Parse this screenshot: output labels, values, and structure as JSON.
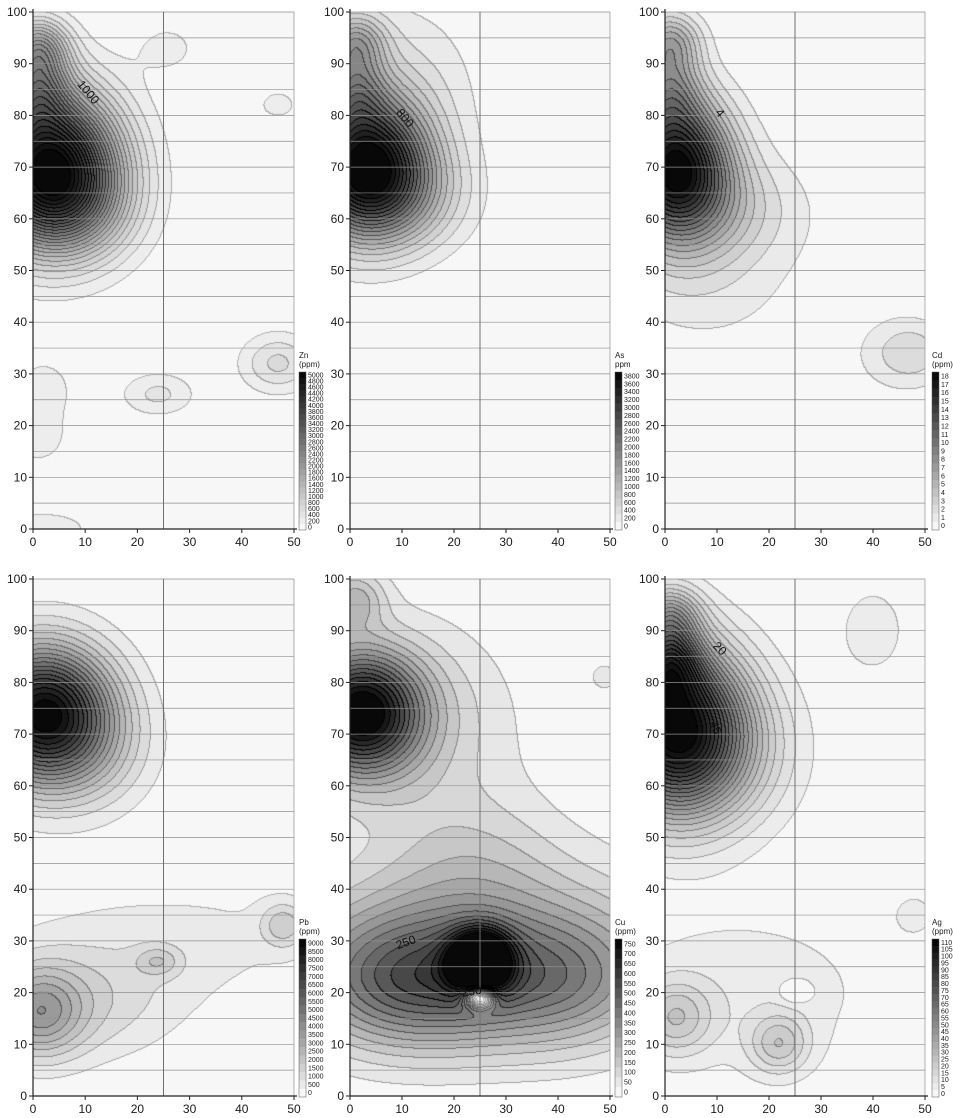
{
  "chart_data": [
    {
      "type": "contour",
      "element": "Zn",
      "unit": "(ppm)",
      "xlim": [
        0,
        50
      ],
      "ylim": [
        0,
        100
      ],
      "x_ticks": [
        0,
        10,
        20,
        30,
        40,
        50
      ],
      "y_ticks": [
        0,
        10,
        20,
        30,
        40,
        50,
        60,
        70,
        80,
        90,
        100
      ],
      "gridlines_y_step": 5,
      "vertical_line_x": 25,
      "colorbar_levels": [
        "5000",
        "4800",
        "4600",
        "4400",
        "4200",
        "4000",
        "3800",
        "3600",
        "3400",
        "3200",
        "3000",
        "2800",
        "2600",
        "2400",
        "2200",
        "2000",
        "1800",
        "1600",
        "1400",
        "1200",
        "1000",
        "800",
        "600",
        "400",
        "200",
        "0"
      ],
      "contour_labels": [
        {
          "text": "1000",
          "x": 10,
          "y": 84,
          "angle": 50
        }
      ],
      "peaks": [
        {
          "x": 3,
          "y": 70,
          "value": 5000,
          "sx": 9,
          "sy": 10
        },
        {
          "x": 1,
          "y": 93,
          "value": 1600,
          "sx": 4,
          "sy": 4
        },
        {
          "x": 1,
          "y": 85,
          "value": 1400,
          "sx": 4,
          "sy": 5
        },
        {
          "x": 8,
          "y": 62,
          "value": 900,
          "sx": 8,
          "sy": 7
        },
        {
          "x": 26,
          "y": 93,
          "value": 250,
          "sx": 5,
          "sy": 4
        },
        {
          "x": 47,
          "y": 82,
          "value": 250,
          "sx": 4,
          "sy": 3
        },
        {
          "x": 47,
          "y": 32,
          "value": 650,
          "sx": 5,
          "sy": 4
        },
        {
          "x": 24,
          "y": 26,
          "value": 450,
          "sx": 5,
          "sy": 3
        },
        {
          "x": 2,
          "y": 27,
          "value": 350,
          "sx": 4,
          "sy": 4
        },
        {
          "x": 1,
          "y": 18,
          "value": 350,
          "sx": 4,
          "sy": 4
        },
        {
          "x": 2,
          "y": 0,
          "value": 300,
          "sx": 8,
          "sy": 3
        }
      ]
    },
    {
      "type": "contour",
      "element": "As",
      "unit": "ppm",
      "xlim": [
        0,
        50
      ],
      "ylim": [
        0,
        100
      ],
      "x_ticks": [
        0,
        10,
        20,
        30,
        40,
        50
      ],
      "y_ticks": [
        0,
        10,
        20,
        30,
        40,
        50,
        60,
        70,
        80,
        90,
        100
      ],
      "gridlines_y_step": 5,
      "vertical_line_x": 25,
      "colorbar_levels": [
        "3800",
        "3600",
        "3400",
        "3200",
        "3000",
        "2800",
        "2600",
        "2400",
        "2200",
        "2000",
        "1800",
        "1600",
        "1400",
        "1200",
        "1000",
        "800",
        "600",
        "400",
        "200",
        "0"
      ],
      "contour_labels": [
        {
          "text": "800",
          "x": 10,
          "y": 79,
          "angle": 50
        }
      ],
      "peaks": [
        {
          "x": 3,
          "y": 70,
          "value": 3800,
          "sx": 8,
          "sy": 9
        },
        {
          "x": 1,
          "y": 94,
          "value": 1200,
          "sx": 4,
          "sy": 4
        },
        {
          "x": 1,
          "y": 85,
          "value": 1000,
          "sx": 4,
          "sy": 5
        },
        {
          "x": 10,
          "y": 64,
          "value": 700,
          "sx": 9,
          "sy": 7
        },
        {
          "x": 10,
          "y": 85,
          "value": 400,
          "sx": 10,
          "sy": 12
        },
        {
          "x": 3,
          "y": 42,
          "value": -150,
          "sx": 1.5,
          "sy": 1.5
        }
      ]
    },
    {
      "type": "contour",
      "element": "Cd",
      "unit": "(ppm)",
      "xlim": [
        0,
        50
      ],
      "ylim": [
        0,
        100
      ],
      "x_ticks": [
        0,
        10,
        20,
        30,
        40,
        50
      ],
      "y_ticks": [
        0,
        10,
        20,
        30,
        40,
        50,
        60,
        70,
        80,
        90,
        100
      ],
      "gridlines_y_step": 5,
      "vertical_line_x": 25,
      "colorbar_levels": [
        "18",
        "17",
        "16",
        "15",
        "14",
        "13",
        "12",
        "11",
        "10",
        "9",
        "8",
        "7",
        "6",
        "5",
        "4",
        "3",
        "2",
        "1",
        "0"
      ],
      "contour_labels": [
        {
          "text": "4",
          "x": 10,
          "y": 80,
          "angle": 50
        }
      ],
      "peaks": [
        {
          "x": 2,
          "y": 70,
          "value": 18,
          "sx": 7,
          "sy": 9
        },
        {
          "x": 1,
          "y": 94,
          "value": 6,
          "sx": 4,
          "sy": 4
        },
        {
          "x": 1,
          "y": 85,
          "value": 5,
          "sx": 4,
          "sy": 5
        },
        {
          "x": 10,
          "y": 62,
          "value": 3,
          "sx": 10,
          "sy": 7
        },
        {
          "x": 6,
          "y": 50,
          "value": 1.3,
          "sx": 10,
          "sy": 8
        },
        {
          "x": 47,
          "y": 34,
          "value": 2.5,
          "sx": 5,
          "sy": 4
        },
        {
          "x": 25,
          "y": 30,
          "value": 0.6,
          "sx": 30,
          "sy": 30
        }
      ]
    },
    {
      "type": "contour",
      "element": "Pb",
      "unit": "(ppm)",
      "xlim": [
        0,
        50
      ],
      "ylim": [
        0,
        100
      ],
      "x_ticks": [
        0,
        10,
        20,
        30,
        40,
        50
      ],
      "y_ticks": [
        0,
        10,
        20,
        30,
        40,
        50,
        60,
        70,
        80,
        90,
        100
      ],
      "gridlines_y_step": 5,
      "vertical_line_x": 25,
      "colorbar_levels": [
        "9000",
        "8500",
        "8000",
        "7500",
        "7000",
        "6500",
        "6000",
        "5500",
        "5000",
        "4500",
        "4000",
        "3500",
        "3000",
        "2500",
        "2000",
        "1500",
        "1000",
        "500",
        "0"
      ],
      "contour_labels": [],
      "peaks": [
        {
          "x": 2,
          "y": 74,
          "value": 9000,
          "sx": 9,
          "sy": 9
        },
        {
          "x": 10,
          "y": 66,
          "value": 1200,
          "sx": 9,
          "sy": 8
        },
        {
          "x": 1,
          "y": 16,
          "value": 3000,
          "sx": 6,
          "sy": 6
        },
        {
          "x": 10,
          "y": 18,
          "value": 1200,
          "sx": 12,
          "sy": 8
        },
        {
          "x": 24,
          "y": 26,
          "value": 1200,
          "sx": 3,
          "sy": 2
        },
        {
          "x": 48,
          "y": 33,
          "value": 1500,
          "sx": 3,
          "sy": 3
        },
        {
          "x": 30,
          "y": 30,
          "value": 600,
          "sx": 25,
          "sy": 10
        }
      ]
    },
    {
      "type": "contour",
      "element": "Cu",
      "unit": "(ppm)",
      "xlim": [
        0,
        50
      ],
      "ylim": [
        0,
        100
      ],
      "x_ticks": [
        0,
        10,
        20,
        30,
        40,
        50
      ],
      "y_ticks": [
        0,
        10,
        20,
        30,
        40,
        50,
        60,
        70,
        80,
        90,
        100
      ],
      "gridlines_y_step": 5,
      "vertical_line_x": 25,
      "colorbar_levels": [
        "750",
        "700",
        "650",
        "600",
        "550",
        "500",
        "450",
        "400",
        "350",
        "300",
        "250",
        "200",
        "150",
        "100",
        "50",
        "0"
      ],
      "contour_labels": [
        {
          "text": "250",
          "x": 11,
          "y": 29,
          "angle": -20
        },
        {
          "text": "250",
          "x": 23.5,
          "y": 19.5,
          "angle": -10
        }
      ],
      "peaks": [
        {
          "x": 2,
          "y": 74,
          "value": 750,
          "sx": 8,
          "sy": 8
        },
        {
          "x": 1,
          "y": 96,
          "value": 200,
          "sx": 4,
          "sy": 4
        },
        {
          "x": 12,
          "y": 72,
          "value": 130,
          "sx": 14,
          "sy": 14
        },
        {
          "x": 25,
          "y": 26,
          "value": 750,
          "sx": 4,
          "sy": 4
        },
        {
          "x": 12,
          "y": 22,
          "value": 420,
          "sx": 14,
          "sy": 9
        },
        {
          "x": 40,
          "y": 22,
          "value": 280,
          "sx": 13,
          "sy": 9
        },
        {
          "x": 24,
          "y": 30,
          "value": 180,
          "sx": 30,
          "sy": 12
        },
        {
          "x": 25,
          "y": 19,
          "value": -650,
          "sx": 2,
          "sy": 1.5
        },
        {
          "x": 24,
          "y": 45,
          "value": 100,
          "sx": 12,
          "sy": 10
        },
        {
          "x": 49,
          "y": 81,
          "value": 80,
          "sx": 2,
          "sy": 2
        }
      ]
    },
    {
      "type": "contour",
      "element": "Ag",
      "unit": "(ppm)",
      "xlim": [
        0,
        50
      ],
      "ylim": [
        0,
        100
      ],
      "x_ticks": [
        0,
        10,
        20,
        30,
        40,
        50
      ],
      "y_ticks": [
        0,
        10,
        20,
        30,
        40,
        50,
        60,
        70,
        80,
        90,
        100
      ],
      "gridlines_y_step": 5,
      "vertical_line_x": 25,
      "colorbar_levels": [
        "110",
        "105",
        "100",
        "95",
        "90",
        "85",
        "80",
        "75",
        "70",
        "65",
        "60",
        "55",
        "50",
        "45",
        "40",
        "35",
        "30",
        "25",
        "20",
        "15",
        "10",
        "5",
        "0"
      ],
      "contour_labels": [
        {
          "text": "20",
          "x": 10,
          "y": 86,
          "angle": 45
        },
        {
          "text": "45",
          "x": 9,
          "y": 71,
          "angle": 70
        }
      ],
      "peaks": [
        {
          "x": 2,
          "y": 71,
          "value": 110,
          "sx": 9,
          "sy": 11
        },
        {
          "x": 1,
          "y": 84,
          "value": 45,
          "sx": 4,
          "sy": 5
        },
        {
          "x": 1,
          "y": 93,
          "value": 30,
          "sx": 4,
          "sy": 4
        },
        {
          "x": 12,
          "y": 66,
          "value": 15,
          "sx": 10,
          "sy": 10
        },
        {
          "x": 2,
          "y": 15,
          "value": 20,
          "sx": 5,
          "sy": 5
        },
        {
          "x": 22,
          "y": 10,
          "value": 20,
          "sx": 4,
          "sy": 4
        },
        {
          "x": 15,
          "y": 20,
          "value": 8,
          "sx": 20,
          "sy": 12
        },
        {
          "x": 40,
          "y": 90,
          "value": 7,
          "sx": 6,
          "sy": 8
        },
        {
          "x": 48,
          "y": 35,
          "value": 7,
          "sx": 3,
          "sy": 3
        },
        {
          "x": 25,
          "y": 20,
          "value": -10,
          "sx": 2,
          "sy": 1.5
        }
      ]
    }
  ]
}
